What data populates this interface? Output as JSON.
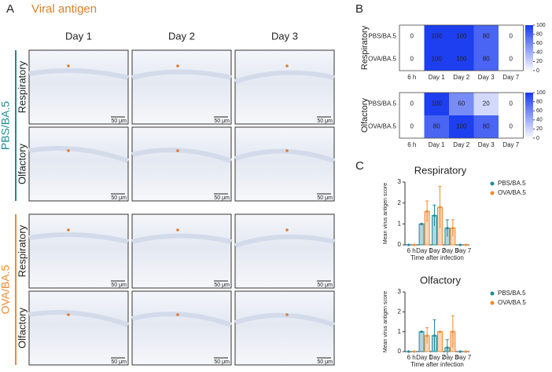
{
  "panel_a": {
    "label": "A",
    "title": "Viral antigen",
    "columns": [
      "Day 1",
      "Day 2",
      "Day 3"
    ],
    "groups": [
      {
        "name": "PBS/BA.5",
        "color": "#1f8a8f",
        "rows": [
          "Respiratory",
          "Olfactory"
        ]
      },
      {
        "name": "OVA/BA.5",
        "color": "#ef8a2e",
        "rows": [
          "Respiratory",
          "Olfactory"
        ]
      }
    ],
    "scale_bar": "50 μm"
  },
  "chart_data": [
    {
      "type": "heatmap",
      "panel": "B",
      "row_title": "Respiratory",
      "categories": [
        "6 h",
        "Day 1",
        "Day 2",
        "Day 3",
        "Day 7"
      ],
      "rows": [
        "PBS/BA.5",
        "OVA/BA.5"
      ],
      "values": [
        [
          0,
          100,
          100,
          80,
          0
        ],
        [
          0,
          100,
          100,
          80,
          0
        ]
      ],
      "zlim": [
        0,
        100
      ],
      "colorbar_ticks": [
        0,
        20,
        40,
        60,
        80,
        100
      ],
      "colors": [
        "#ffffff",
        "#1d3ff0"
      ]
    },
    {
      "type": "heatmap",
      "row_title": "Olfactory",
      "categories": [
        "6 h",
        "Day 1",
        "Day 2",
        "Day 3",
        "Day 7"
      ],
      "rows": [
        "PBS/BA.5",
        "OVA/BA.5"
      ],
      "values": [
        [
          0,
          100,
          60,
          20,
          0
        ],
        [
          0,
          80,
          100,
          80,
          0
        ]
      ],
      "zlim": [
        0,
        100
      ],
      "colorbar_ticks": [
        0,
        20,
        40,
        60,
        80,
        100
      ],
      "colors": [
        "#ffffff",
        "#1d3ff0"
      ]
    },
    {
      "type": "bar",
      "panel": "C",
      "title": "Respiratory",
      "categories": [
        "6 h",
        "Day 1",
        "Day 2",
        "Day 3",
        "Day 7"
      ],
      "series": [
        {
          "name": "PBS/BA.5",
          "color": "#1f8a9a",
          "values": [
            0,
            1,
            1.4,
            0.8,
            0
          ],
          "errors": [
            0,
            0,
            0.5,
            0.4,
            0
          ]
        },
        {
          "name": "OVA/BA.5",
          "color": "#f08a30",
          "values": [
            0,
            1.6,
            1.8,
            0.8,
            0
          ],
          "errors": [
            0,
            0.5,
            1,
            0.4,
            0
          ]
        }
      ],
      "ylim": [
        0,
        3
      ],
      "yticks": [
        0,
        1,
        2,
        3
      ],
      "ylabel": "Mean virus antigen score",
      "xlabel": "Time after infection"
    },
    {
      "type": "bar",
      "title": "Olfactory",
      "categories": [
        "6 h",
        "Day 1",
        "Day 2",
        "Day 3",
        "Day 7"
      ],
      "series": [
        {
          "name": "PBS/BA.5",
          "color": "#1f8a9a",
          "values": [
            0,
            1,
            0.8,
            0.2,
            0
          ],
          "errors": [
            0,
            0,
            0.8,
            0.4,
            0
          ]
        },
        {
          "name": "OVA/BA.5",
          "color": "#f08a30",
          "values": [
            0,
            0.8,
            1,
            1,
            0
          ],
          "errors": [
            0,
            0.4,
            0,
            0.8,
            0
          ]
        }
      ],
      "ylim": [
        0,
        3
      ],
      "yticks": [
        0,
        1,
        2,
        3
      ],
      "ylabel": "Mean virus antigen score",
      "xlabel": "Time after infection"
    }
  ]
}
